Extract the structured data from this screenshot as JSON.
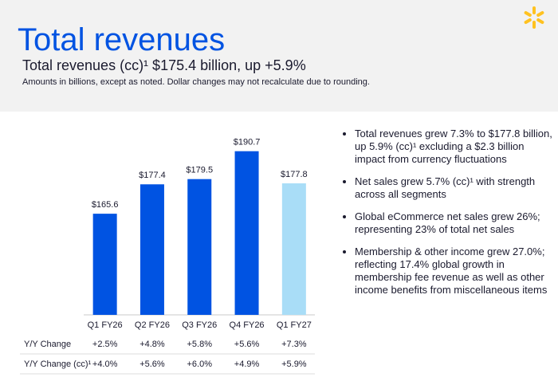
{
  "header": {
    "title": "Total revenues",
    "subtitle": "Total revenues (cc)¹ $175.4 billion, up +5.9%",
    "note": "Amounts in billions, except as noted.  Dollar changes may not recalculate due to rounding."
  },
  "chart_data": {
    "type": "bar",
    "categories": [
      "Q1 FY26",
      "Q2 FY26",
      "Q3 FY26",
      "Q4 FY26",
      "Q1 FY27"
    ],
    "values": [
      165.6,
      177.4,
      179.5,
      190.7,
      177.8
    ],
    "value_labels": [
      "$165.6",
      "$177.4",
      "$179.5",
      "$190.7",
      "$177.8"
    ],
    "colors": [
      "#0053e2",
      "#0053e2",
      "#0053e2",
      "#0053e2",
      "#a9ddf7"
    ],
    "ylim": [
      125,
      197
    ]
  },
  "table": {
    "rows": [
      [
        "Y/Y Change",
        "+2.5%",
        "+4.8%",
        "+5.8%",
        "+5.6%",
        "+7.3%"
      ],
      [
        "Y/Y Change (cc)¹",
        "+4.0%",
        "+5.6%",
        "+6.0%",
        "+4.9%",
        "+5.9%"
      ]
    ]
  },
  "bullets": [
    "Total revenues grew 7.3% to $177.8 billion, up 5.9% (cc)¹ excluding a $2.3 billion impact from currency fluctuations",
    "Net sales grew 5.7% (cc)¹ with strength across all segments",
    "Global eCommerce net sales grew 26%; representing 23% of total net sales",
    "Membership & other income grew 27.0%; reflecting 17.4% global growth in membership fee revenue as well as other income benefits from miscellaneous items"
  ]
}
